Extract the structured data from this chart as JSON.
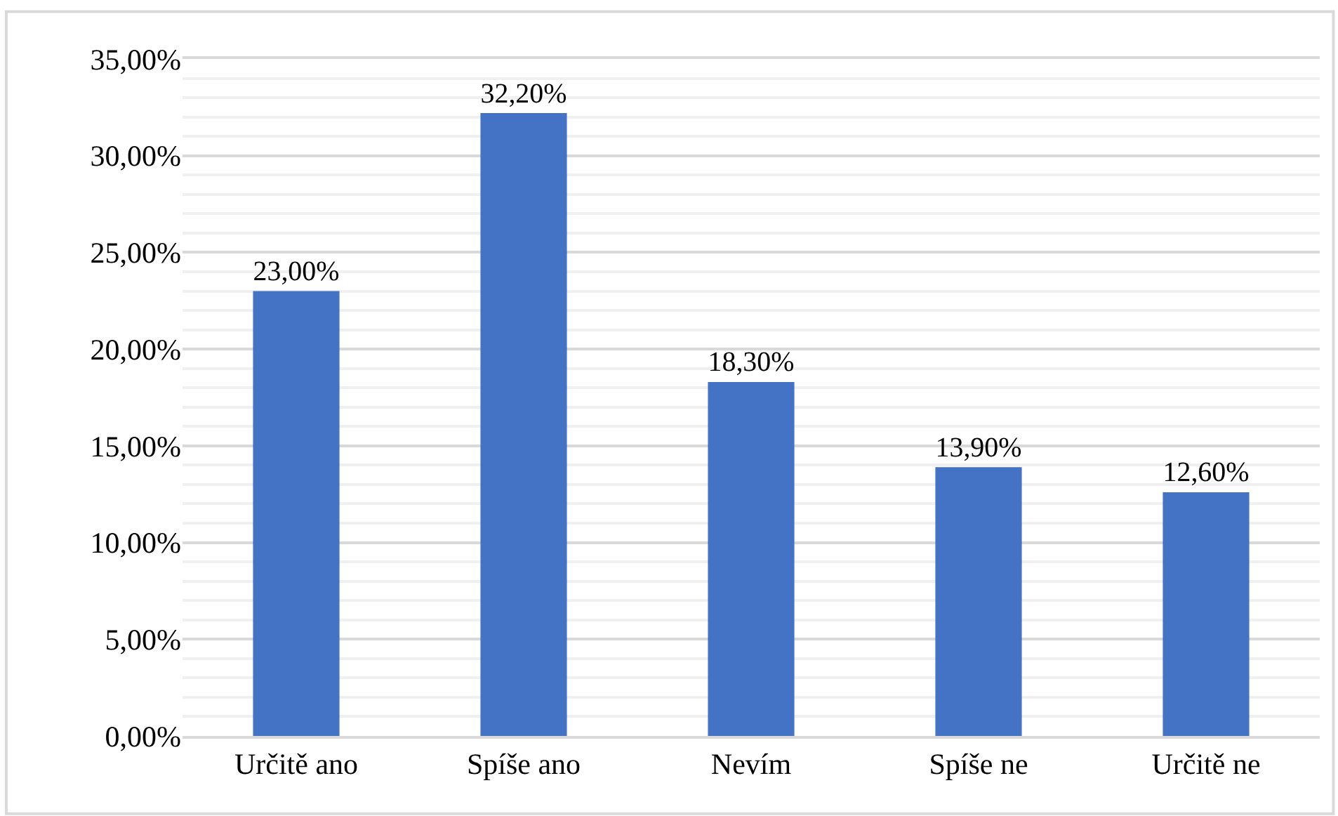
{
  "chart_data": {
    "type": "bar",
    "categories": [
      "Určitě ano",
      "Spíše ano",
      "Nevím",
      "Spíše ne",
      "Určitě ne"
    ],
    "values": [
      23.0,
      32.2,
      18.3,
      13.9,
      12.6
    ],
    "value_labels": [
      "23,00%",
      "32,20%",
      "18,30%",
      "13,90%",
      "12,60%"
    ],
    "color": "#4472c4",
    "ylim": [
      0,
      35
    ],
    "yticks": [
      {
        "value": 0,
        "label": "0,00%"
      },
      {
        "value": 5,
        "label": "5,00%"
      },
      {
        "value": 10,
        "label": "10,00%"
      },
      {
        "value": 15,
        "label": "15,00%"
      },
      {
        "value": 20,
        "label": "20,00%"
      },
      {
        "value": 25,
        "label": "25,00%"
      },
      {
        "value": 30,
        "label": "30,00%"
      },
      {
        "value": 35,
        "label": "35,00%"
      }
    ],
    "grid": "y",
    "legend": false
  }
}
